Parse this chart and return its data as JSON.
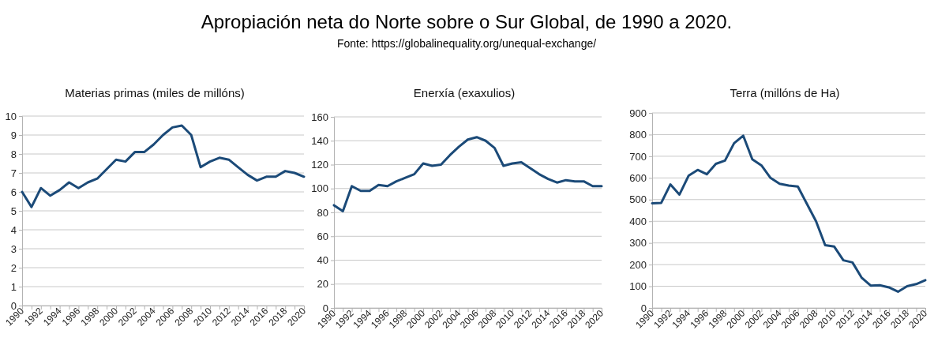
{
  "chart_data": [
    {
      "type": "line",
      "title": "Materias primas (miles de millóns)",
      "annotations": [
        "Apropiación neta do Norte sobre o Sur Global, de 1990 a 2020.",
        "Fonte: https://globalinequality.org/unequal-exchange/"
      ],
      "categories": [
        "1990",
        null,
        "1992",
        null,
        "1994",
        null,
        "1996",
        null,
        "1998",
        null,
        "2000",
        null,
        "2002",
        null,
        "2004",
        null,
        "2006",
        null,
        "2008",
        null,
        "2010",
        null,
        "2012",
        null,
        "2014",
        null,
        "2016",
        null,
        "2018",
        null,
        "2020"
      ],
      "series": [
        {
          "color": "#1b4a78",
          "values": [
            6.0,
            5.2,
            6.2,
            5.8,
            6.1,
            6.5,
            6.2,
            6.5,
            6.7,
            7.2,
            7.7,
            7.6,
            8.1,
            8.1,
            8.5,
            9.0,
            9.4,
            9.5,
            9.0,
            7.3,
            7.6,
            7.8,
            7.7,
            7.3,
            6.9,
            6.6,
            6.8,
            6.8,
            7.1,
            7.0,
            6.8
          ]
        }
      ],
      "ylim": [
        0,
        10
      ],
      "yticks": [
        0,
        1,
        2,
        3,
        4,
        5,
        6,
        7,
        8,
        9,
        10
      ],
      "grid": "y"
    },
    {
      "type": "line",
      "title": "Enerxía (exaxulios)",
      "categories": [
        "1990",
        null,
        "1992",
        null,
        "1994",
        null,
        "1996",
        null,
        "1998",
        null,
        "2000",
        null,
        "2002",
        null,
        "2004",
        null,
        "2006",
        null,
        "2008",
        null,
        "2010",
        null,
        "2012",
        null,
        "2014",
        null,
        "2016",
        null,
        "2018",
        null,
        "2020"
      ],
      "series": [
        {
          "color": "#1b4a78",
          "values": [
            86,
            81,
            102,
            98,
            98,
            103,
            102,
            106,
            109,
            112,
            121,
            119,
            120,
            128,
            135,
            141,
            143,
            140,
            134,
            119,
            121,
            122,
            117,
            112,
            108,
            105,
            107,
            106,
            106,
            102,
            102
          ]
        }
      ],
      "ylim": [
        0,
        160
      ],
      "yticks": [
        0,
        20,
        40,
        60,
        80,
        100,
        120,
        140,
        160
      ],
      "grid": "y"
    },
    {
      "type": "line",
      "title": "Terra (millóns de Ha)",
      "categories": [
        "1990",
        null,
        "1992",
        null,
        "1994",
        null,
        "1996",
        null,
        "1998",
        null,
        "2000",
        null,
        "2002",
        null,
        "2004",
        null,
        "2006",
        null,
        "2008",
        null,
        "2010",
        null,
        "2012",
        null,
        "2014",
        null,
        "2016",
        null,
        "2018",
        null,
        "2020"
      ],
      "series": [
        {
          "color": "#1b4a78",
          "values": [
            483,
            485,
            570,
            523,
            610,
            637,
            617,
            665,
            680,
            760,
            795,
            686,
            658,
            600,
            573,
            565,
            560,
            480,
            400,
            290,
            283,
            220,
            210,
            140,
            103,
            105,
            95,
            75,
            100,
            110,
            128
          ]
        }
      ],
      "ylim": [
        0,
        900
      ],
      "yticks": [
        0,
        100,
        200,
        300,
        400,
        500,
        600,
        700,
        800,
        900
      ],
      "grid": "y"
    }
  ]
}
